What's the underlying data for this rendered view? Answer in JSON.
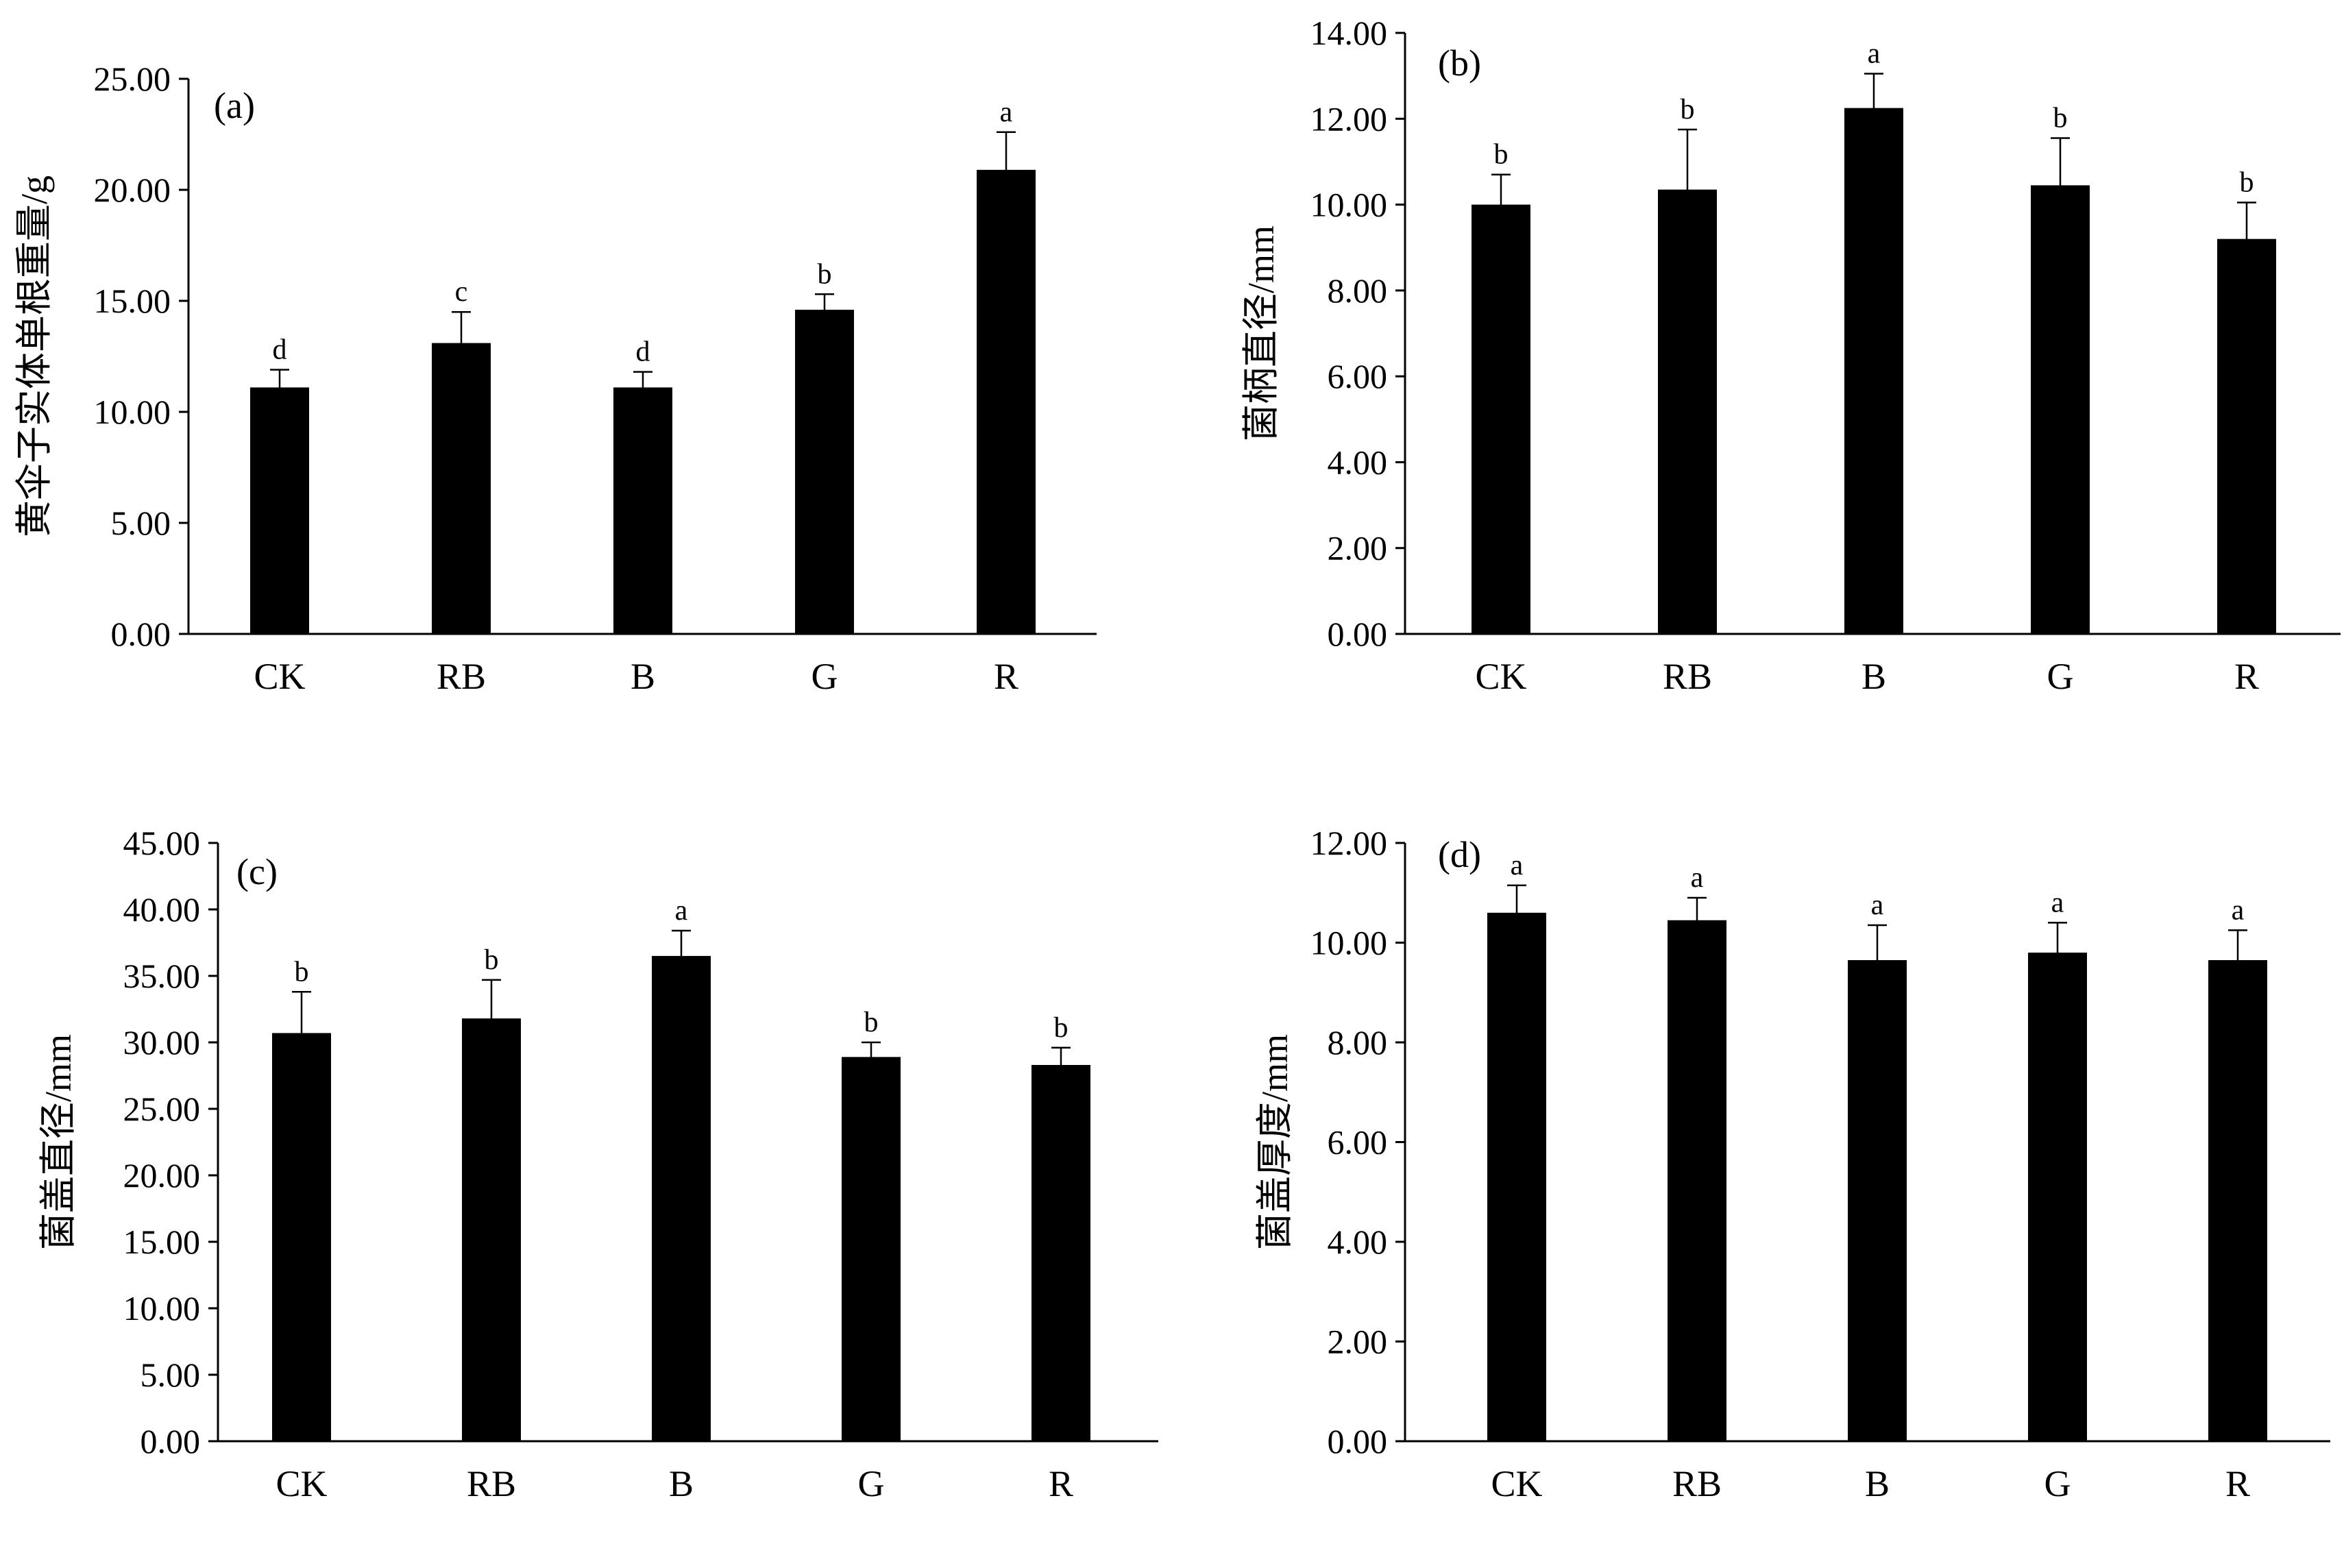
{
  "chart_data": [
    {
      "type": "bar",
      "panel_label": "(a)",
      "ylabel": "黄伞子实体单根重量/g",
      "categories": [
        "CK",
        "RB",
        "B",
        "G",
        "R"
      ],
      "values": [
        11.1,
        13.1,
        11.1,
        14.6,
        20.9
      ],
      "error": [
        0.8,
        1.4,
        0.7,
        0.7,
        1.7
      ],
      "significance": [
        "d",
        "c",
        "d",
        "b",
        "a"
      ],
      "ylim": [
        0,
        25
      ],
      "yticks": [
        "0.00",
        "5.00",
        "10.00",
        "15.00",
        "20.00",
        "25.00"
      ],
      "bar_color": "#000000",
      "grid": false
    },
    {
      "type": "bar",
      "panel_label": "(b)",
      "ylabel": "菌柄直径/mm",
      "categories": [
        "CK",
        "RB",
        "B",
        "G",
        "R"
      ],
      "values": [
        10.0,
        10.35,
        12.25,
        10.45,
        9.2
      ],
      "error": [
        0.7,
        1.4,
        0.8,
        1.1,
        0.85
      ],
      "significance": [
        "b",
        "b",
        "a",
        "b",
        "b"
      ],
      "ylim": [
        0,
        14
      ],
      "yticks": [
        "0.00",
        "2.00",
        "4.00",
        "6.00",
        "8.00",
        "10.00",
        "12.00",
        "14.00"
      ],
      "bar_color": "#000000",
      "grid": false
    },
    {
      "type": "bar",
      "panel_label": "(c)",
      "ylabel": "菌盖直径/mm",
      "categories": [
        "CK",
        "RB",
        "B",
        "G",
        "R"
      ],
      "values": [
        30.7,
        31.8,
        36.5,
        28.9,
        28.3
      ],
      "error": [
        3.1,
        2.9,
        1.9,
        1.1,
        1.3
      ],
      "significance": [
        "b",
        "b",
        "a",
        "b",
        "b"
      ],
      "ylim": [
        0,
        45
      ],
      "yticks": [
        "0.00",
        "5.00",
        "10.00",
        "15.00",
        "20.00",
        "25.00",
        "30.00",
        "35.00",
        "40.00",
        "45.00"
      ],
      "bar_color": "#000000",
      "grid": false
    },
    {
      "type": "bar",
      "panel_label": "(d)",
      "ylabel": "菌盖厚度/mm",
      "categories": [
        "CK",
        "RB",
        "B",
        "G",
        "R"
      ],
      "values": [
        10.6,
        10.45,
        9.65,
        9.8,
        9.65
      ],
      "error": [
        0.55,
        0.45,
        0.7,
        0.6,
        0.6
      ],
      "significance": [
        "a",
        "a",
        "a",
        "a",
        "a"
      ],
      "ylim": [
        0,
        12
      ],
      "yticks": [
        "0.00",
        "2.00",
        "4.00",
        "6.00",
        "8.00",
        "10.00",
        "12.00"
      ],
      "bar_color": "#000000",
      "grid": false
    }
  ]
}
